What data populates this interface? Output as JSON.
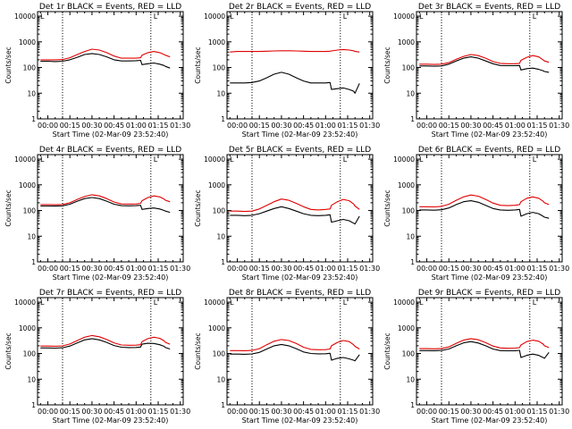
{
  "shared": {
    "xlabel": "Start Time (02-Mar-09 23:52:40)",
    "ylabel": "Counts/sec",
    "x_tick_labels": [
      "00:00",
      "00:15",
      "00:30",
      "00:45",
      "01:00",
      "01:15",
      "01:30"
    ],
    "y_tick_labels": [
      "1",
      "10",
      "100",
      "1000",
      "10000"
    ],
    "corner_marks": [
      "L",
      "L",
      "L"
    ],
    "colors": {
      "events": "#000000",
      "lld": "#e00000",
      "axes": "#000000"
    }
  },
  "chart_data": [
    {
      "type": "line",
      "title": "Det 1r BLACK = Events, RED = LLD",
      "x_unit": "minutes after 00:00",
      "y_scale": "log",
      "ylim": [
        1,
        15000
      ],
      "x": [
        -5,
        0,
        5,
        10,
        15,
        20,
        25,
        30,
        35,
        40,
        45,
        50,
        55,
        60,
        63,
        64,
        68,
        72,
        76,
        79,
        80,
        83
      ],
      "series": [
        {
          "name": "Events",
          "values": [
            175,
            175,
            170,
            175,
            200,
            250,
            320,
            350,
            320,
            260,
            200,
            180,
            180,
            185,
            190,
            130,
            140,
            150,
            135,
            120,
            110,
            95
          ]
        },
        {
          "name": "LLD",
          "values": [
            200,
            200,
            200,
            205,
            240,
            320,
            420,
            520,
            480,
            380,
            280,
            230,
            230,
            230,
            240,
            300,
            380,
            420,
            380,
            320,
            300,
            260
          ]
        }
      ]
    },
    {
      "type": "line",
      "title": "Det 2r BLACK = Events, RED = LLD",
      "x_unit": "minutes after 00:00",
      "y_scale": "log",
      "ylim": [
        1,
        15000
      ],
      "x": [
        -5,
        0,
        5,
        10,
        15,
        20,
        25,
        30,
        35,
        40,
        45,
        50,
        55,
        60,
        63,
        64,
        68,
        72,
        76,
        79,
        80,
        83
      ],
      "series": [
        {
          "name": "Events",
          "values": [
            25,
            25,
            25,
            26,
            30,
            40,
            55,
            65,
            55,
            40,
            30,
            25,
            25,
            25,
            26,
            14,
            15,
            16,
            14,
            12,
            10,
            24
          ]
        },
        {
          "name": "LLD",
          "values": [
            400,
            420,
            420,
            420,
            420,
            430,
            440,
            450,
            450,
            440,
            430,
            420,
            420,
            420,
            430,
            440,
            480,
            500,
            480,
            450,
            420,
            400
          ]
        }
      ]
    },
    {
      "type": "line",
      "title": "Det 3r BLACK = Events, RED = LLD",
      "x_unit": "minutes after 00:00",
      "y_scale": "log",
      "ylim": [
        1,
        15000
      ],
      "x": [
        -5,
        0,
        5,
        10,
        15,
        20,
        25,
        30,
        35,
        40,
        45,
        50,
        55,
        60,
        63,
        64,
        68,
        72,
        76,
        79,
        80,
        83
      ],
      "series": [
        {
          "name": "Events",
          "values": [
            115,
            115,
            112,
            115,
            135,
            180,
            230,
            260,
            230,
            180,
            140,
            120,
            118,
            118,
            120,
            80,
            90,
            95,
            85,
            75,
            70,
            65
          ]
        },
        {
          "name": "LLD",
          "values": [
            135,
            135,
            132,
            135,
            155,
            210,
            270,
            320,
            290,
            230,
            170,
            145,
            140,
            140,
            145,
            190,
            250,
            290,
            260,
            200,
            180,
            160
          ]
        }
      ]
    },
    {
      "type": "line",
      "title": "Det 4r BLACK = Events, RED = LLD",
      "x_unit": "minutes after 00:00",
      "y_scale": "log",
      "ylim": [
        1,
        15000
      ],
      "x": [
        -5,
        0,
        5,
        10,
        15,
        20,
        25,
        30,
        35,
        40,
        45,
        50,
        55,
        60,
        63,
        64,
        68,
        72,
        76,
        79,
        80,
        83
      ],
      "series": [
        {
          "name": "Events",
          "values": [
            150,
            150,
            148,
            152,
            175,
            230,
            290,
            320,
            290,
            230,
            175,
            155,
            152,
            155,
            160,
            110,
            120,
            125,
            115,
            100,
            95,
            85
          ]
        },
        {
          "name": "LLD",
          "values": [
            170,
            170,
            168,
            172,
            200,
            270,
            350,
            410,
            370,
            290,
            215,
            180,
            178,
            180,
            190,
            240,
            320,
            370,
            340,
            280,
            250,
            220
          ]
        }
      ]
    },
    {
      "type": "line",
      "title": "Det 5r BLACK = Events, RED = LLD",
      "x_unit": "minutes after 00:00",
      "y_scale": "log",
      "ylim": [
        1,
        15000
      ],
      "x": [
        -5,
        0,
        5,
        10,
        15,
        20,
        25,
        30,
        35,
        40,
        45,
        50,
        55,
        60,
        63,
        64,
        68,
        72,
        76,
        79,
        80,
        83
      ],
      "series": [
        {
          "name": "Events",
          "values": [
            65,
            65,
            63,
            65,
            75,
            95,
            120,
            140,
            120,
            95,
            75,
            65,
            63,
            65,
            68,
            35,
            40,
            45,
            40,
            32,
            30,
            60
          ]
        },
        {
          "name": "LLD",
          "values": [
            95,
            95,
            92,
            95,
            115,
            160,
            220,
            280,
            250,
            190,
            140,
            110,
            105,
            110,
            115,
            160,
            220,
            270,
            240,
            180,
            150,
            110
          ]
        }
      ]
    },
    {
      "type": "line",
      "title": "Det 6r BLACK = Events, RED = LLD",
      "x_unit": "minutes after 00:00",
      "y_scale": "log",
      "ylim": [
        1,
        15000
      ],
      "x": [
        -5,
        0,
        5,
        10,
        15,
        20,
        25,
        30,
        35,
        40,
        45,
        50,
        55,
        60,
        63,
        64,
        68,
        72,
        76,
        79,
        80,
        83
      ],
      "series": [
        {
          "name": "Events",
          "values": [
            105,
            105,
            103,
            107,
            125,
            170,
            220,
            240,
            210,
            160,
            120,
            105,
            102,
            105,
            110,
            60,
            75,
            85,
            75,
            60,
            55,
            50
          ]
        },
        {
          "name": "LLD",
          "values": [
            140,
            140,
            138,
            145,
            175,
            250,
            340,
            400,
            360,
            270,
            195,
            160,
            155,
            160,
            170,
            220,
            300,
            340,
            300,
            230,
            200,
            170
          ]
        }
      ]
    },
    {
      "type": "line",
      "title": "Det 7r BLACK = Events, RED = LLD",
      "x_unit": "minutes after 00:00",
      "y_scale": "log",
      "ylim": [
        1,
        15000
      ],
      "x": [
        -5,
        0,
        5,
        10,
        15,
        20,
        25,
        30,
        35,
        40,
        45,
        50,
        55,
        60,
        63,
        64,
        68,
        72,
        76,
        79,
        80,
        83
      ],
      "series": [
        {
          "name": "Events",
          "values": [
            165,
            165,
            162,
            168,
            195,
            260,
            340,
            380,
            340,
            270,
            205,
            175,
            170,
            172,
            178,
            230,
            250,
            245,
            220,
            190,
            170,
            150
          ]
        },
        {
          "name": "LLD",
          "values": [
            195,
            195,
            192,
            198,
            235,
            320,
            430,
            500,
            450,
            350,
            260,
            215,
            210,
            212,
            220,
            290,
            380,
            430,
            390,
            310,
            270,
            230
          ]
        }
      ]
    },
    {
      "type": "line",
      "title": "Det 8r BLACK = Events, RED = LLD",
      "x_unit": "minutes after 00:00",
      "y_scale": "log",
      "ylim": [
        1,
        15000
      ],
      "x": [
        -5,
        0,
        5,
        10,
        15,
        20,
        25,
        30,
        35,
        40,
        45,
        50,
        55,
        60,
        63,
        64,
        68,
        72,
        76,
        79,
        80,
        83
      ],
      "series": [
        {
          "name": "Events",
          "values": [
            95,
            95,
            93,
            96,
            110,
            150,
            200,
            225,
            200,
            155,
            115,
            100,
            97,
            98,
            102,
            55,
            65,
            70,
            62,
            55,
            52,
            90
          ]
        },
        {
          "name": "LLD",
          "values": [
            130,
            130,
            128,
            132,
            155,
            220,
            300,
            350,
            320,
            245,
            175,
            145,
            140,
            142,
            150,
            200,
            270,
            320,
            290,
            220,
            190,
            150
          ]
        }
      ]
    },
    {
      "type": "line",
      "title": "Det 9r BLACK = Events, RED = LLD",
      "x_unit": "minutes after 00:00",
      "y_scale": "log",
      "ylim": [
        1,
        15000
      ],
      "x": [
        -5,
        0,
        5,
        10,
        15,
        20,
        25,
        30,
        35,
        40,
        45,
        50,
        55,
        60,
        63,
        64,
        68,
        72,
        76,
        79,
        80,
        83
      ],
      "series": [
        {
          "name": "Events",
          "values": [
            130,
            130,
            128,
            132,
            150,
            200,
            260,
            290,
            255,
            200,
            150,
            130,
            127,
            128,
            133,
            70,
            85,
            95,
            85,
            70,
            65,
            110
          ]
        },
        {
          "name": "LLD",
          "values": [
            155,
            155,
            152,
            157,
            180,
            250,
            330,
            380,
            345,
            265,
            195,
            165,
            160,
            162,
            170,
            215,
            290,
            330,
            300,
            235,
            200,
            170
          ]
        }
      ]
    }
  ]
}
